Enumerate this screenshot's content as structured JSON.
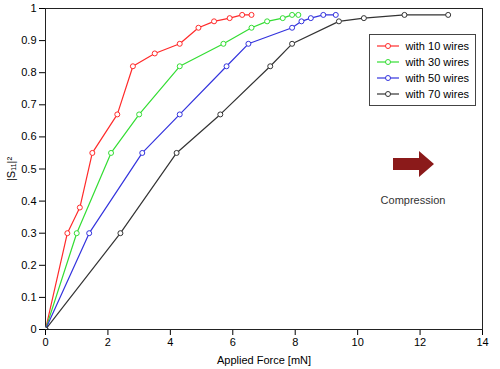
{
  "chart_data": {
    "type": "line",
    "xlabel": "Applied Force [mN]",
    "ylabel": "|S₁₁|²",
    "xlim": [
      0,
      14
    ],
    "ylim": [
      0,
      1
    ],
    "xticks": [
      0,
      2,
      4,
      6,
      8,
      10,
      12,
      14
    ],
    "yticks": [
      0,
      0.1,
      0.2,
      0.3,
      0.4,
      0.5,
      0.6,
      0.7,
      0.8,
      0.9,
      1
    ],
    "grid": false,
    "legend": "upper right",
    "marker": "circle",
    "line_style": "solid",
    "annotations": [
      "Compression"
    ],
    "series": [
      {
        "name": "with 10 wires",
        "color": "#ff2a2a",
        "x": [
          0,
          0.7,
          1.1,
          1.5,
          2.3,
          2.8,
          3.5,
          4.3,
          4.9,
          5.4,
          5.9,
          6.3,
          6.6
        ],
        "values": [
          0,
          0.3,
          0.38,
          0.55,
          0.67,
          0.82,
          0.86,
          0.89,
          0.94,
          0.96,
          0.97,
          0.98,
          0.98
        ]
      },
      {
        "name": "with 30 wires",
        "color": "#33dd33",
        "x": [
          0,
          1.0,
          2.1,
          3.0,
          4.3,
          5.7,
          6.6,
          7.1,
          7.6,
          7.9,
          8.1
        ],
        "values": [
          0,
          0.3,
          0.55,
          0.67,
          0.82,
          0.89,
          0.94,
          0.96,
          0.97,
          0.98,
          0.98
        ]
      },
      {
        "name": "with 50 wires",
        "color": "#3333dd",
        "x": [
          0,
          1.4,
          3.1,
          4.3,
          5.8,
          6.5,
          7.9,
          8.2,
          8.5,
          8.9,
          9.3
        ],
        "values": [
          0,
          0.3,
          0.55,
          0.67,
          0.82,
          0.89,
          0.94,
          0.96,
          0.97,
          0.98,
          0.98
        ]
      },
      {
        "name": "with 70 wires",
        "color": "#333333",
        "x": [
          0,
          2.4,
          4.2,
          5.6,
          7.2,
          7.9,
          9.4,
          10.2,
          11.5,
          12.9
        ],
        "values": [
          0,
          0.3,
          0.55,
          0.67,
          0.82,
          0.89,
          0.96,
          0.97,
          0.98,
          0.98
        ]
      }
    ]
  }
}
